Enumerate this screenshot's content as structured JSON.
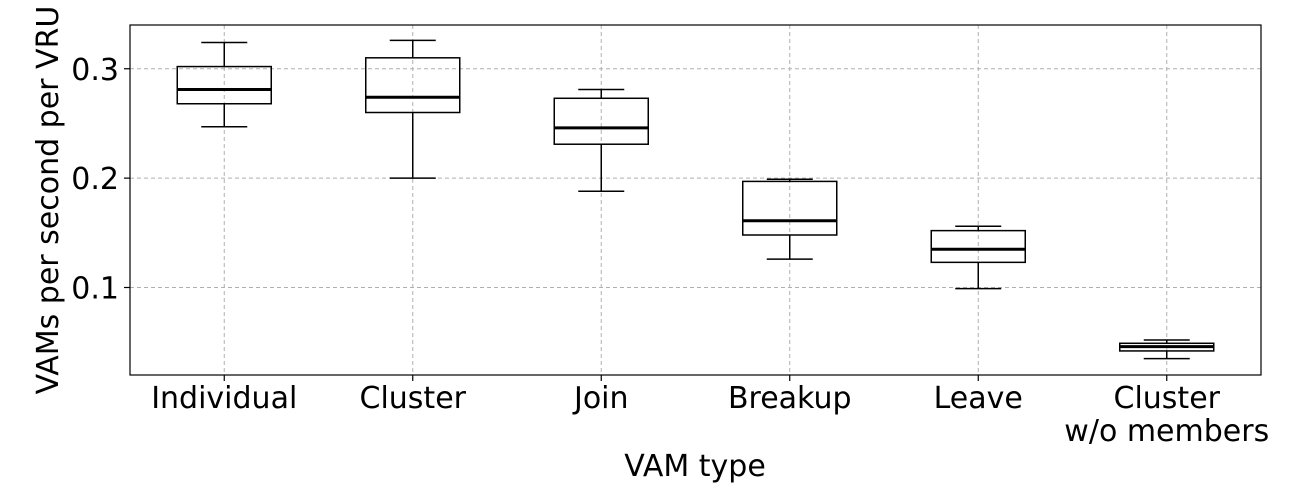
{
  "chart_data": {
    "type": "box",
    "xlabel": "VAM type",
    "ylabel": "VAMs per second per VRU",
    "ylim": [
      0.02,
      0.34
    ],
    "yticks": [
      0.1,
      0.2,
      0.3
    ],
    "ytick_labels": [
      "0.1",
      "0.2",
      "0.3"
    ],
    "grid": true,
    "categories": [
      [
        "Individual"
      ],
      [
        "Cluster"
      ],
      [
        "Join"
      ],
      [
        "Breakup"
      ],
      [
        "Leave"
      ],
      [
        "Cluster",
        "w/o members"
      ]
    ],
    "boxes": [
      {
        "whisker_low": 0.247,
        "q1": 0.268,
        "median": 0.281,
        "q3": 0.302,
        "whisker_high": 0.324
      },
      {
        "whisker_low": 0.2,
        "q1": 0.26,
        "median": 0.274,
        "q3": 0.31,
        "whisker_high": 0.326
      },
      {
        "whisker_low": 0.188,
        "q1": 0.231,
        "median": 0.246,
        "q3": 0.273,
        "whisker_high": 0.281
      },
      {
        "whisker_low": 0.126,
        "q1": 0.148,
        "median": 0.161,
        "q3": 0.197,
        "whisker_high": 0.199
      },
      {
        "whisker_low": 0.099,
        "q1": 0.123,
        "median": 0.135,
        "q3": 0.152,
        "whisker_high": 0.156
      },
      {
        "whisker_low": 0.035,
        "q1": 0.042,
        "median": 0.046,
        "q3": 0.049,
        "whisker_high": 0.052
      }
    ]
  }
}
